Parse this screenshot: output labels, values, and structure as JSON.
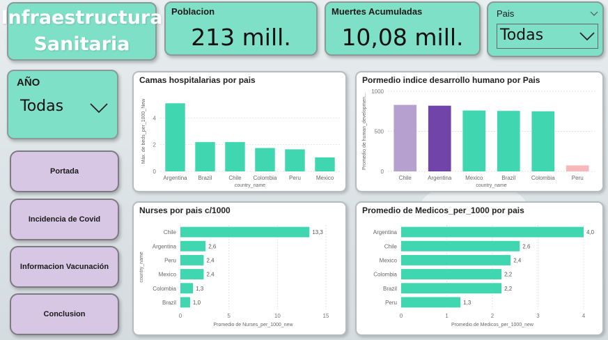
{
  "header": {
    "title_line1": "Infraestructura",
    "title_line2": "Sanitaria"
  },
  "kpis": {
    "poblacion": {
      "label": "Poblacion",
      "value": "213 mill."
    },
    "muertes": {
      "label": "Muertes Acumuladas",
      "value": "10,08 mill."
    }
  },
  "slicers": {
    "pais": {
      "label": "Pais",
      "value": "Todas"
    },
    "anio": {
      "label": "AÑO",
      "value": "Todas"
    }
  },
  "nav": [
    "Portada",
    "Incidencia de Covid",
    "Informacion Vacunación",
    "Conclusion"
  ],
  "colors": {
    "teal": "#40d6b0",
    "purple_light": "#b5a0d0",
    "purple_dark": "#7044a8",
    "pink": "#f6b8b9"
  },
  "chart_data": [
    {
      "type": "bar",
      "title": "Camas hospitalarias por pais",
      "xlabel": "country_name",
      "ylabel": "Máx. de beds_per_1000_New",
      "categories": [
        "Argentina",
        "Brazil",
        "Chile",
        "Colombia",
        "Peru",
        "Mexico"
      ],
      "values": [
        5.1,
        2.2,
        2.2,
        1.75,
        1.65,
        1.05
      ],
      "yticks": [
        "0",
        "2",
        "4"
      ],
      "ylim": [
        0,
        6
      ],
      "grid": true
    },
    {
      "type": "bar",
      "title": "Pormedio indice desarrollo humano por Pais",
      "xlabel": "country_name",
      "ylabel": "Promedio de human_developmen...",
      "categories": [
        "Chile",
        "Argentina",
        "Mexico",
        "Brazil",
        "Colombia",
        "Peru"
      ],
      "values": [
        830,
        820,
        760,
        755,
        750,
        75
      ],
      "bar_colors": [
        "#b5a0d0",
        "#7044a8",
        "#40d6b0",
        "#40d6b0",
        "#40d6b0",
        "#f6b8b9"
      ],
      "yticks": [
        "0",
        "500",
        "1000"
      ],
      "ylim": [
        0,
        1000
      ],
      "grid": true
    },
    {
      "type": "bar",
      "orientation": "horizontal",
      "title": "Nurses por pais c/1000",
      "xlabel": "Promedio de Nurses_per_1000_new",
      "ylabel": "country_name",
      "categories": [
        "Chile",
        "Argentina",
        "Peru",
        "Mexico",
        "Colombia",
        "Brazil"
      ],
      "values": [
        13.3,
        2.6,
        2.4,
        2.4,
        1.3,
        1.0
      ],
      "data_labels": [
        "13,3",
        "2,6",
        "2,4",
        "2,4",
        "1,3",
        "1,0"
      ],
      "xticks": [
        "0",
        "5",
        "10",
        "15"
      ],
      "xlim": [
        0,
        15
      ],
      "grid": true
    },
    {
      "type": "bar",
      "orientation": "horizontal",
      "title": "Promedio de Medicos_per_1000 por pais",
      "xlabel": "Promedio de Medicos_per_1000_new",
      "ylabel": "",
      "categories": [
        "Argentina",
        "Chile",
        "Mexico",
        "Colombia",
        "Brazil",
        "Peru"
      ],
      "values": [
        4.0,
        2.6,
        2.4,
        2.2,
        2.2,
        1.3
      ],
      "data_labels": [
        "4,0",
        "2,6",
        "2,4",
        "2,2",
        "2,2",
        "1,3"
      ],
      "xticks": [
        "0",
        "1",
        "2",
        "3",
        "4"
      ],
      "xlim": [
        0,
        4
      ],
      "grid": true
    }
  ]
}
